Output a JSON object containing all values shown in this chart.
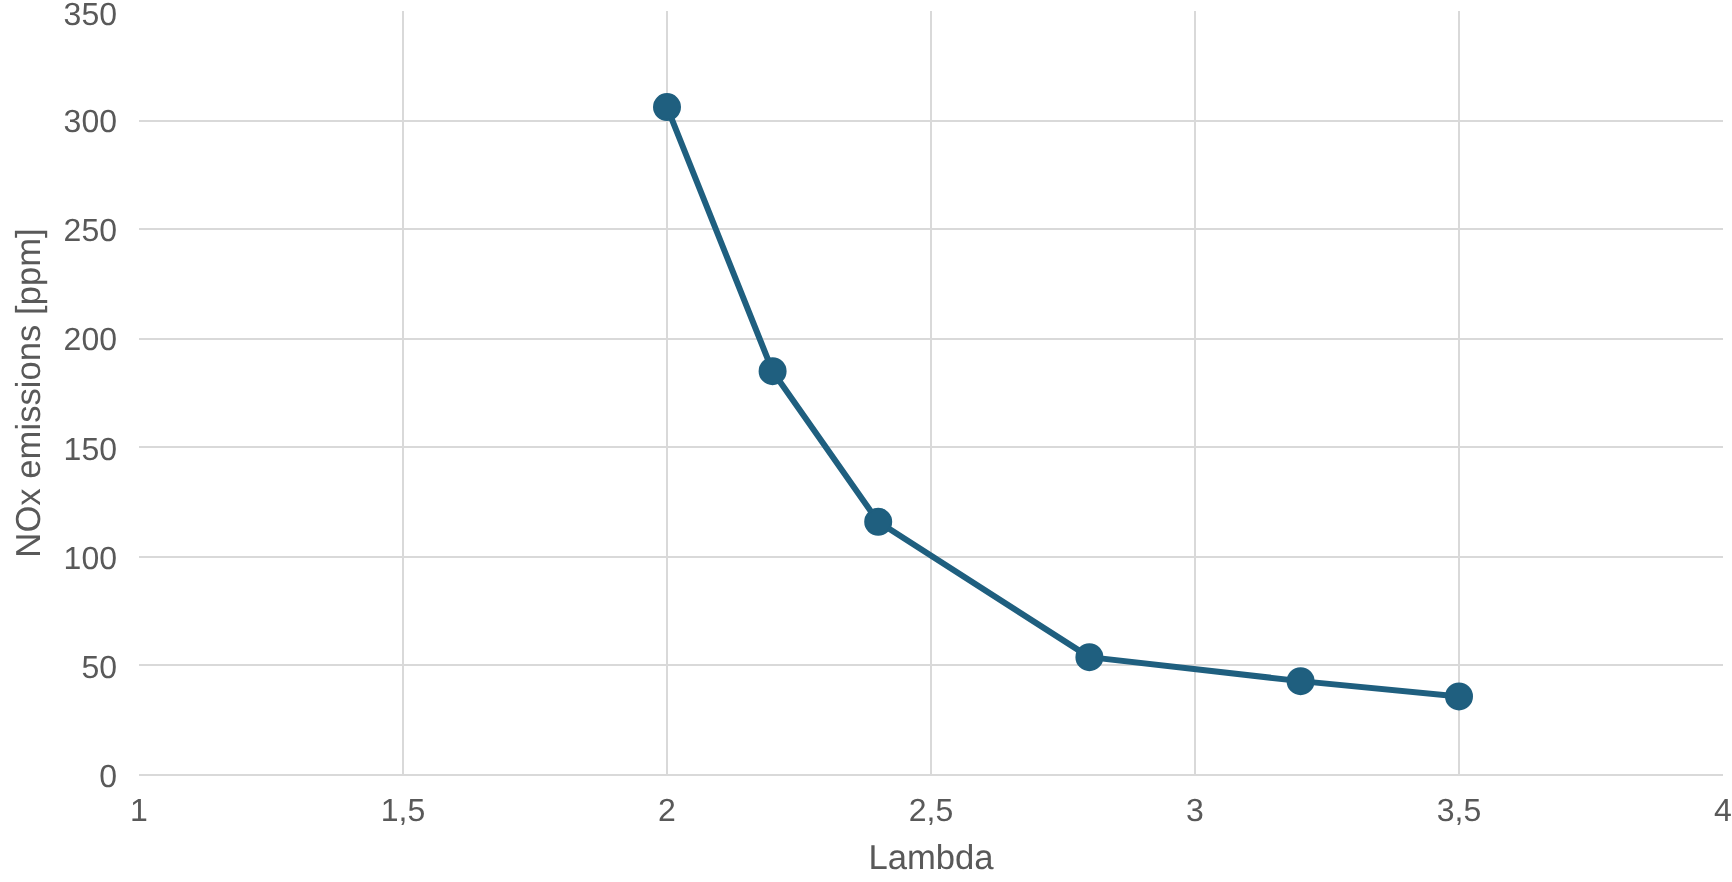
{
  "chart_data": {
    "type": "line",
    "xlabel": "Lambda",
    "ylabel": "NOx emissions [ppm]",
    "x": [
      2,
      2.2,
      2.4,
      2.8,
      3.2,
      3.5
    ],
    "series": [
      {
        "color": "#1f5f7f",
        "values": [
          306,
          185,
          116,
          54,
          43,
          36
        ]
      }
    ],
    "xlim": [
      1,
      4
    ],
    "xticks": [
      1,
      {
        "value": 1.5,
        "label": "1,5"
      },
      2,
      {
        "value": 2.5,
        "label": "2,5"
      },
      3,
      {
        "value": 3.5,
        "label": "3,5"
      },
      4
    ],
    "ylim": [
      0,
      350
    ],
    "yticks": [
      0,
      50,
      100,
      150,
      200,
      250,
      300,
      350
    ],
    "grid": true,
    "marker": "circle",
    "line_style": "solid"
  }
}
